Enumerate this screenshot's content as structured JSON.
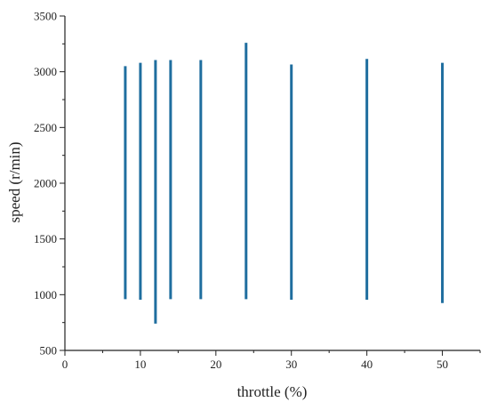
{
  "chart_data": {
    "type": "scatter",
    "title": "",
    "xlabel": "throttle (%)",
    "ylabel": "speed (r/min)",
    "xlim": [
      0,
      55
    ],
    "ylim": [
      500,
      3500
    ],
    "x_ticks": [
      0,
      10,
      20,
      30,
      40,
      50
    ],
    "y_ticks": [
      500,
      1000,
      1500,
      2000,
      2500,
      3000,
      3500
    ],
    "grid": false,
    "legend": "none",
    "series_color": "#1f6e9f",
    "ranges": [
      {
        "x": 8,
        "y_min": 960,
        "y_max": 3050
      },
      {
        "x": 10,
        "y_min": 955,
        "y_max": 3080
      },
      {
        "x": 12,
        "y_min": 740,
        "y_max": 3105
      },
      {
        "x": 14,
        "y_min": 960,
        "y_max": 3105
      },
      {
        "x": 18,
        "y_min": 960,
        "y_max": 3105
      },
      {
        "x": 24,
        "y_min": 960,
        "y_max": 3260
      },
      {
        "x": 30,
        "y_min": 955,
        "y_max": 3065
      },
      {
        "x": 40,
        "y_min": 955,
        "y_max": 3115
      },
      {
        "x": 50,
        "y_min": 925,
        "y_max": 3080
      }
    ]
  }
}
